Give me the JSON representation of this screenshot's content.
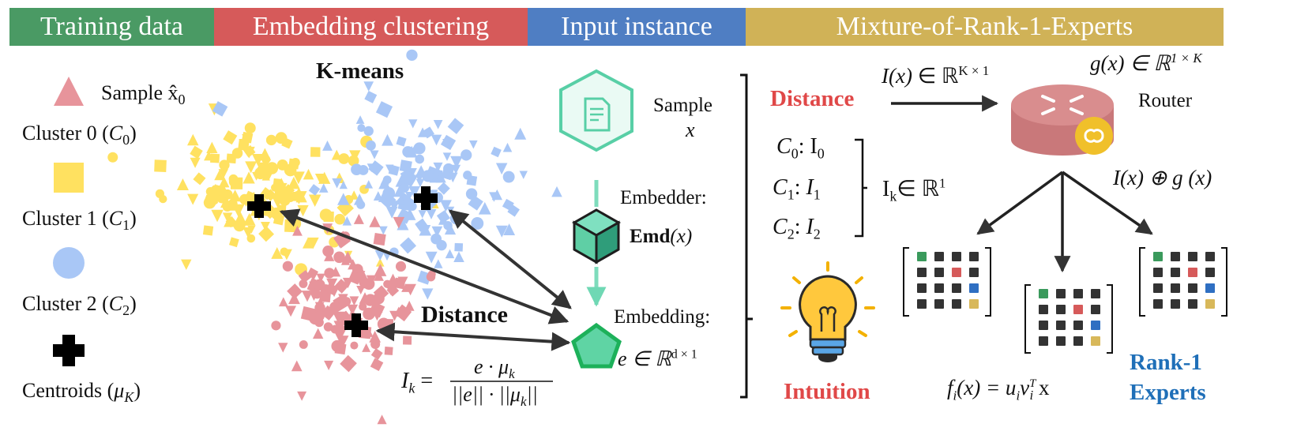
{
  "headers": {
    "training": "Training data",
    "embedding": "Embedding clustering",
    "input": "Input instance",
    "mixture": "Mixture-of-Rank-1-Experts"
  },
  "colors": {
    "green": "#4a9a64",
    "red": "#d65a5a",
    "blue": "#4f7ec3",
    "gold": "#d0b257",
    "c0": "#e7949b",
    "c1": "#ffe160",
    "c2": "#a9c7f6",
    "teal": "#46c89e",
    "teal_light": "#7fdcbc"
  },
  "legend": {
    "sample_label": "Sample",
    "sample_symbol": "x̂",
    "sample_sub": "0",
    "cluster0": "Cluster 0 (",
    "cluster0_sym": "C",
    "cluster0_sub": "0",
    "cluster1": "Cluster 1 (",
    "cluster1_sym": "C",
    "cluster1_sub": "1",
    "cluster2": "Cluster 2 (",
    "cluster2_sym": "C",
    "cluster2_sub": "2",
    "centroids": "Centroids (",
    "centroids_sym": "μ",
    "centroids_sub": "K",
    "close": ")"
  },
  "clustering": {
    "title": "K-means",
    "distance": "Distance",
    "formula_lhs": "I",
    "formula_lhs_sub": "k",
    "formula_eq": "=",
    "formula_num": "e · μ",
    "formula_num_sub": "k",
    "formula_den": "||e|| · ||μ",
    "formula_den_sub": "k",
    "formula_den_end": "||"
  },
  "input": {
    "sample_label": "Sample",
    "sample_var": "x",
    "embedder_label": "Embedder:",
    "emd_label": "Emd",
    "emd_arg": "(x)",
    "embedding_label": "Embedding:",
    "embedding_expr": "e ∈ ℝ",
    "embedding_sup": "d × 1",
    "icons": [
      "document-icon",
      "cube-icon",
      "pentagon-icon"
    ]
  },
  "mixture": {
    "distance_title": "Distance",
    "intuition": "Intuition",
    "rows": [
      {
        "c": "C",
        "sub": "0",
        "rhs": "I",
        "rhs_sub": "0"
      },
      {
        "c": "C",
        "sub": "1",
        "rhs": "I",
        "rhs_sub": "1"
      },
      {
        "c": "C",
        "sub": "2",
        "rhs": "I",
        "rhs_sub": "2"
      }
    ],
    "ik": "I",
    "ik_sub": "k",
    "ik_rest": "∈ ℝ",
    "ik_sup": "1",
    "Ix": "I(x)",
    "Ix_in": "∈ ℝ",
    "Ix_sup": "K × 1",
    "gx": "g(x) ∈ ℝ",
    "gx_sup": "1 × K",
    "router": "Router",
    "sum": "I(x) ⊕ g (x)",
    "fi_lhs": "f",
    "fi_sub": "i",
    "fi_mid": "(x) = u",
    "fi_u_sub": "i",
    "fi_v": "v",
    "fi_v_sub": "i",
    "fi_v_sup": "T",
    "fi_end": "x",
    "experts_line1": "Rank-1",
    "experts_line2": "Experts",
    "icons": [
      "router-icon",
      "lightbulb-icon"
    ]
  }
}
